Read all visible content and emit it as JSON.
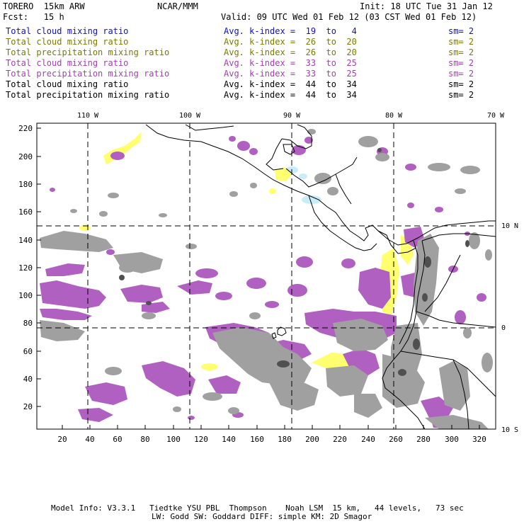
{
  "header": {
    "model": "TORERO  15km ARW",
    "org": "NCAR/MMM",
    "init": "Init: 18 UTC Tue 31 Jan 12",
    "fcst": "Fcst:   15 h",
    "valid": "Valid: 09 UTC Wed 01 Feb 12 (03 CST Wed 01 Feb 12)"
  },
  "legend_rows": [
    {
      "name": "Total cloud mixing ratio",
      "kindex": "Avg. k-index =  19  to   4",
      "sm": "sm= 2",
      "color": "#1010c8"
    },
    {
      "name": "Total cloud mixing ratio",
      "kindex": "Avg. k-index =  26  to  20",
      "sm": "sm= 2",
      "color": "#7a7a00"
    },
    {
      "name": "Total precipitation mixing ratio",
      "kindex": "Avg. k-index =  26  to  20",
      "sm": "sm= 2",
      "color": "#7a7a00"
    },
    {
      "name": "Total cloud mixing ratio",
      "kindex": "Avg. k-index =  33  to  25",
      "sm": "sm= 2",
      "color": "#a040b0"
    },
    {
      "name": "Total precipitation mixing ratio",
      "kindex": "Avg. k-index =  33  to  25",
      "sm": "sm= 2",
      "color": "#a040b0"
    },
    {
      "name": "Total cloud mixing ratio",
      "kindex": "Avg. k-index =  44  to  34",
      "sm": "sm= 2",
      "color": "#000000"
    },
    {
      "name": "Total precipitation mixing ratio",
      "kindex": "Avg. k-index =  44  to  34",
      "sm": "sm= 2",
      "color": "#000000"
    }
  ],
  "map": {
    "top_lon_labels": [
      "110 W",
      "100 W",
      "90 W",
      "80 W",
      "70 W"
    ],
    "right_lat_labels": [
      "10 N",
      "0",
      "10 S"
    ],
    "y_ticks": [
      "220",
      "200",
      "180",
      "160",
      "140",
      "120",
      "100",
      "80",
      "60",
      "40",
      "20"
    ],
    "x_ticks": [
      "20",
      "40",
      "60",
      "80",
      "100",
      "120",
      "140",
      "160",
      "180",
      "200",
      "220",
      "240",
      "260",
      "280",
      "300",
      "320"
    ],
    "colors": {
      "blue_layer": "#c8ecf8",
      "yellow_layer": "#ffff70",
      "purple_layer": "#b060c0",
      "gray_layer": "#a0a0a0",
      "dark_gray": "#505050",
      "coast": "#000000"
    }
  },
  "footer": {
    "line1": "Model Info: V3.3.1   Tiedtke YSU PBL  Thompson    Noah LSM  15 km,   44 levels,   73 sec",
    "line2": "LW: Godd SW: Goddard DIFF: simple KM: 2D Smagor"
  }
}
